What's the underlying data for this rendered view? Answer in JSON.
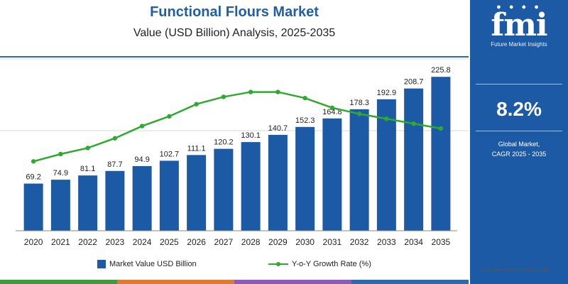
{
  "header": {
    "title": "Functional Flours Market",
    "subtitle": "Value (USD Billion) Analysis, 2025-2035"
  },
  "sidebar": {
    "logo_mark": "fmi",
    "logo_text": "Future Market Insights",
    "cagr_value": "8.2%",
    "cagr_label_line1": "Global Market,",
    "cagr_label_line2": "CAGR 2025 - 2035"
  },
  "footer": {
    "url": "www.futuremarketinsights.com"
  },
  "legend": {
    "bars_label": "Market Value USD Billion",
    "line_label": "Y-o-Y Growth Rate (%)"
  },
  "colors": {
    "bar": "#1d5aa6",
    "line": "#2eaa2e",
    "accent": "#1f5fa8",
    "strip": [
      "#3f9a3f",
      "#e07a2e",
      "#8a5bb8",
      "#2a6bb0"
    ]
  },
  "chart_data": {
    "type": "bar",
    "categories": [
      "2020",
      "2021",
      "2022",
      "2023",
      "2024",
      "2025",
      "2026",
      "2027",
      "2028",
      "2029",
      "2030",
      "2031",
      "2032",
      "2033",
      "2034",
      "2035"
    ],
    "series": [
      {
        "name": "Market Value USD Billion",
        "type": "bar",
        "values": [
          69.2,
          74.9,
          81.1,
          87.7,
          94.9,
          102.7,
          111.1,
          120.2,
          130.1,
          140.7,
          152.3,
          164.8,
          178.3,
          192.9,
          208.7,
          225.8
        ],
        "labels": [
          "69.2",
          "74.9",
          "81.1",
          "87.7",
          "94.9",
          "102.7",
          "111.1",
          "120.2",
          "130.1",
          "140.7",
          "152.3",
          "164.8",
          "178.3",
          "192.9",
          "208.7",
          "225.8"
        ]
      },
      {
        "name": "Y-o-Y Growth Rate (%)",
        "type": "line",
        "values": [
          5.7,
          6.3,
          6.8,
          7.6,
          8.6,
          9.4,
          10.4,
          11.0,
          11.4,
          11.4,
          10.9,
          10.1,
          9.6,
          9.2,
          8.8,
          8.4
        ]
      }
    ],
    "ylim_bars": [
      0,
      250
    ],
    "ylim_line": [
      0,
      14
    ],
    "grid": true,
    "legend_position": "bottom"
  }
}
